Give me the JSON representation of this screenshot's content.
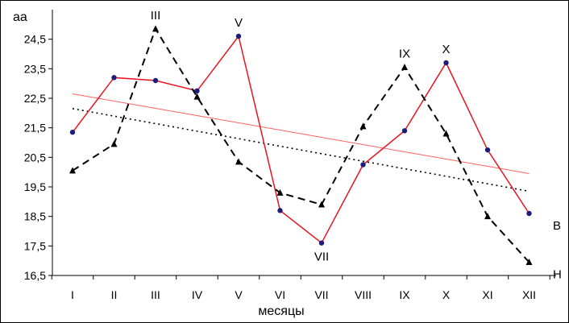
{
  "chart_data": {
    "type": "line",
    "ylabel": "aa",
    "xlabel": "месяцы",
    "categories": [
      "I",
      "II",
      "III",
      "IV",
      "V",
      "VI",
      "VII",
      "VIII",
      "IX",
      "X",
      "XI",
      "XII"
    ],
    "ylim": [
      16.5,
      25.5
    ],
    "yticks": [
      "16,5",
      "17,5",
      "18,5",
      "19,5",
      "20,5",
      "21,5",
      "22,5",
      "23,5",
      "24,5"
    ],
    "grid": false,
    "series": [
      {
        "name": "B",
        "values": [
          21.35,
          23.2,
          23.1,
          22.75,
          24.6,
          18.7,
          17.6,
          20.25,
          21.4,
          23.7,
          20.75,
          18.6
        ],
        "color": "#e8141e",
        "marker": "circle",
        "marker_color": "#1c1c7a",
        "style": "solid",
        "trendline": {
          "start": 22.65,
          "end": 19.95,
          "color": "#ff6060",
          "style": "solid"
        }
      },
      {
        "name": "H",
        "values": [
          20.05,
          20.95,
          24.85,
          22.55,
          20.35,
          19.3,
          18.9,
          21.55,
          23.55,
          21.3,
          18.5,
          16.95
        ],
        "color": "#000000",
        "marker": "triangle",
        "marker_color": "#000000",
        "style": "dashed",
        "trendline": {
          "start": 22.15,
          "end": 19.35,
          "color": "#000000",
          "style": "dotted"
        }
      }
    ],
    "annotations": [
      {
        "text": "III",
        "category": 2,
        "value": 24.85
      },
      {
        "text": "V",
        "category": 4,
        "value": 24.6
      },
      {
        "text": "VII",
        "category": 6,
        "value": 17.6
      },
      {
        "text": "IX",
        "category": 8,
        "value": 23.55
      },
      {
        "text": "X",
        "category": 9,
        "value": 23.7
      }
    ]
  }
}
